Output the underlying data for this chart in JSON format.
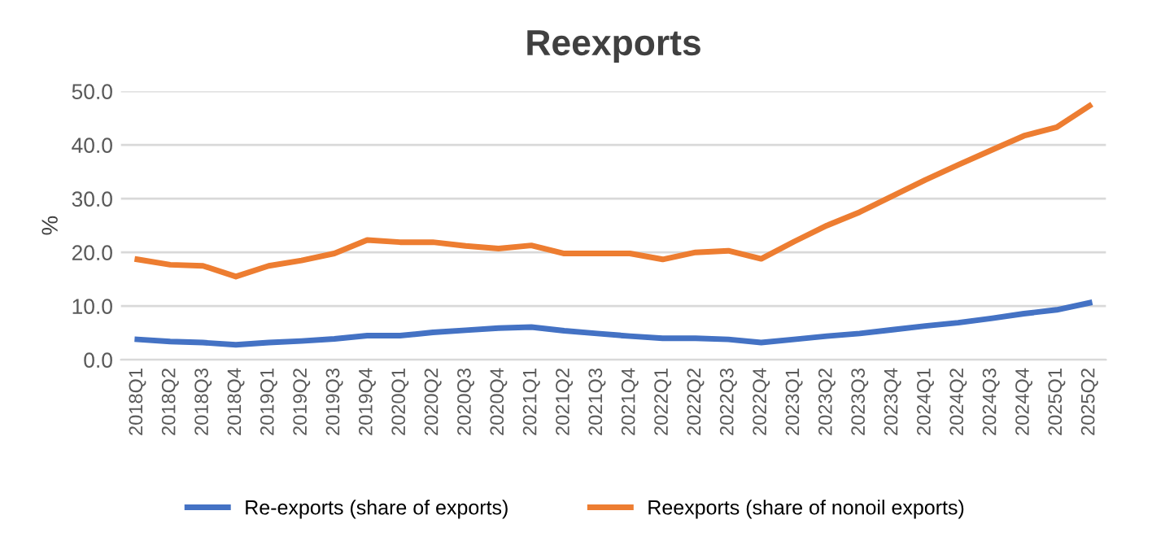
{
  "chart_data": {
    "type": "line",
    "title": "Reexports",
    "ylabel": "%",
    "categories": [
      "2018Q1",
      "2018Q2",
      "2018Q3",
      "2018Q4",
      "2019Q1",
      "2019Q2",
      "2019Q3",
      "2019Q4",
      "2020Q1",
      "2020Q2",
      "2020Q3",
      "2020Q4",
      "2021Q1",
      "2021Q2",
      "2021Q3",
      "2021Q4",
      "2022Q1",
      "2022Q2",
      "2022Q3",
      "2022Q4",
      "2023Q1",
      "2023Q2",
      "2023Q3",
      "2023Q4",
      "2024Q1",
      "2024Q2",
      "2024Q3",
      "2024Q4",
      "2025Q1",
      "2025Q2"
    ],
    "series": [
      {
        "name": "Re-exports (share of exports)",
        "color": "#4472c4",
        "values": [
          3.8,
          3.4,
          3.2,
          2.8,
          3.2,
          3.5,
          3.9,
          4.5,
          4.5,
          5.1,
          5.5,
          5.9,
          6.1,
          5.4,
          4.9,
          4.4,
          4.0,
          4.0,
          3.8,
          3.2,
          3.8,
          4.4,
          4.9,
          5.6,
          6.3,
          6.9,
          7.7,
          8.6,
          9.3,
          10.6
        ]
      },
      {
        "name": "Reexports (share of nonoil exports)",
        "color": "#ed7d31",
        "values": [
          18.7,
          17.7,
          17.5,
          15.5,
          17.5,
          18.5,
          19.8,
          22.3,
          21.9,
          21.9,
          21.2,
          20.7,
          21.3,
          19.8,
          19.8,
          19.8,
          18.7,
          20.0,
          20.3,
          18.8,
          22.0,
          25.0,
          27.5,
          30.5,
          33.5,
          36.3,
          39.0,
          41.7,
          43.3,
          47.3
        ]
      }
    ],
    "ylim": [
      0,
      50
    ],
    "yticks": [
      {
        "value": 0,
        "label": "0.0"
      },
      {
        "value": 10,
        "label": "10.0"
      },
      {
        "value": 20,
        "label": "20.0"
      },
      {
        "value": 30,
        "label": "30.0"
      },
      {
        "value": 40,
        "label": "40.0"
      },
      {
        "value": 50,
        "label": "50.0"
      }
    ],
    "grid": "y",
    "legend": "bottom",
    "marker": "none",
    "line_style": "solid"
  }
}
